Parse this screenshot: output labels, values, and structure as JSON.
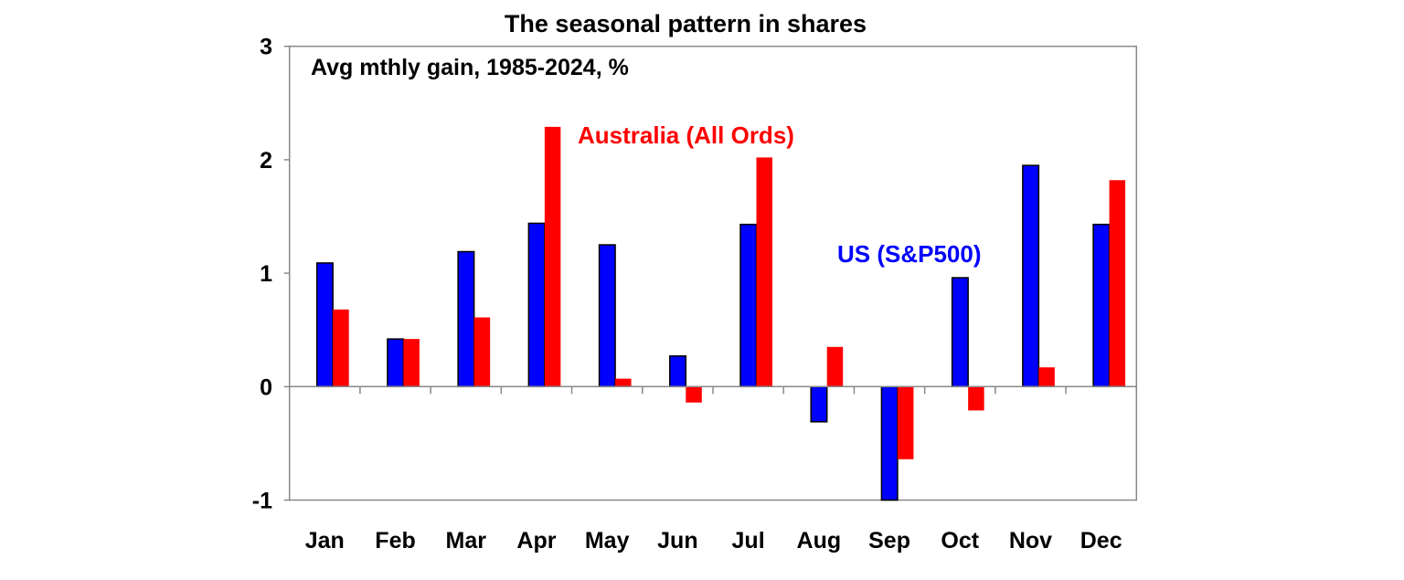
{
  "chart_data": {
    "type": "bar",
    "title": "The seasonal pattern in shares",
    "subtitle": "Avg mthly gain, 1985-2024, %",
    "xlabel": "",
    "ylabel": "",
    "ylim": [
      -1,
      3
    ],
    "yticks": [
      "3",
      "2",
      "1",
      "0",
      "-1"
    ],
    "ytick_values": [
      3,
      2,
      1,
      0,
      -1
    ],
    "grid": false,
    "categories": [
      "Jan",
      "Feb",
      "Mar",
      "Apr",
      "May",
      "Jun",
      "Jul",
      "Aug",
      "Sep",
      "Oct",
      "Nov",
      "Dec"
    ],
    "series": [
      {
        "name": "US (S&P500)",
        "color": "#0000ff",
        "values": [
          1.09,
          0.42,
          1.19,
          1.44,
          1.25,
          0.27,
          1.43,
          -0.31,
          -1.0,
          0.96,
          1.95,
          1.43
        ]
      },
      {
        "name": "Australia (All Ords)",
        "color": "#ff0000",
        "values": [
          0.68,
          0.42,
          0.61,
          2.29,
          0.07,
          -0.14,
          2.02,
          0.35,
          -0.64,
          -0.21,
          0.17,
          1.82
        ]
      }
    ]
  }
}
